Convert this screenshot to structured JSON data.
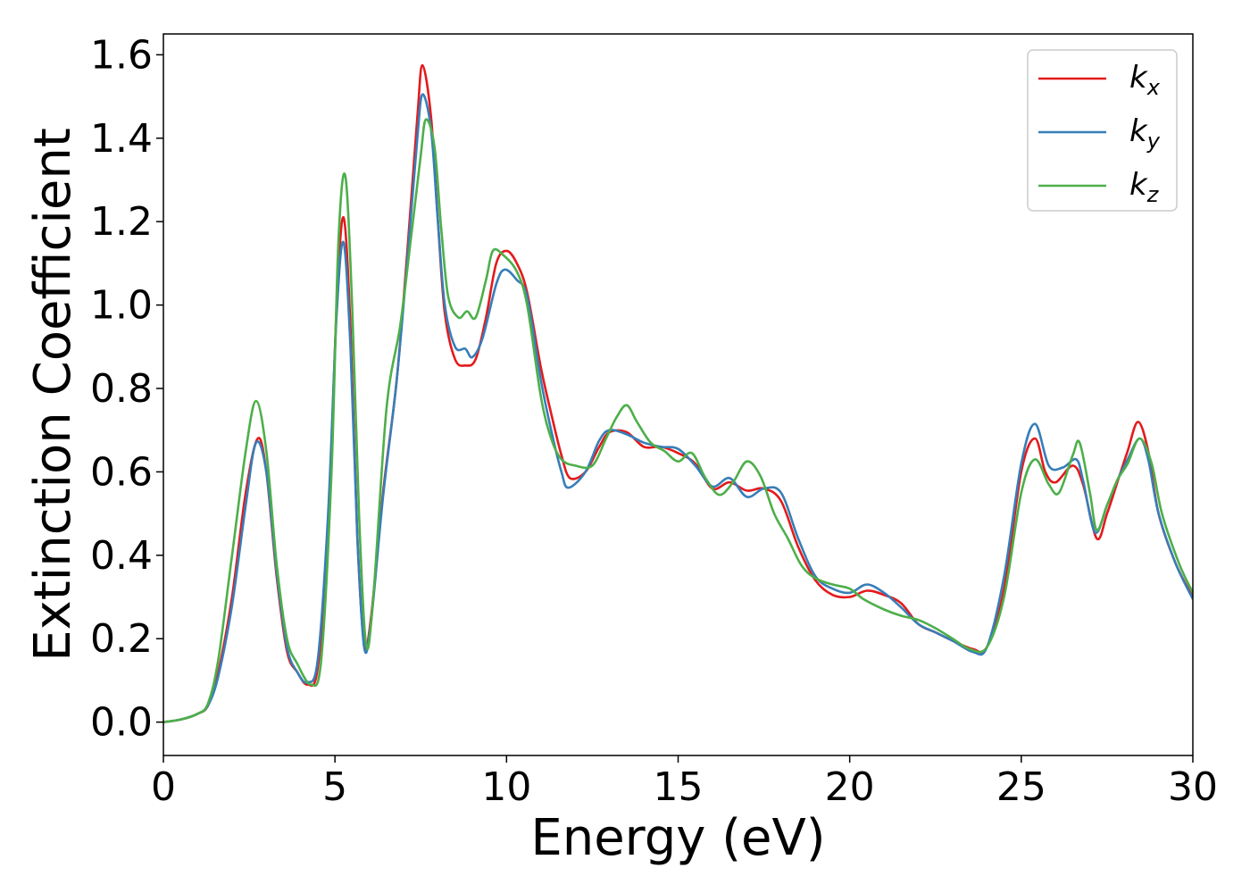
{
  "chart_data": {
    "type": "line",
    "title": "",
    "xlabel": "Energy (eV)",
    "ylabel": "Extinction Coefficient",
    "xlim": [
      0,
      30
    ],
    "ylim": [
      -0.08,
      1.65
    ],
    "xticks": [
      "0",
      "5",
      "10",
      "15",
      "20",
      "25",
      "30"
    ],
    "yticks": [
      "0.0",
      "0.2",
      "0.4",
      "0.6",
      "0.8",
      "1.0",
      "1.2",
      "1.4",
      "1.6"
    ],
    "grid": false,
    "legend_position": "top-right",
    "series": [
      {
        "name": "k",
        "subscript": "x",
        "color": "#e41a1c",
        "points": [
          [
            0,
            0.0
          ],
          [
            0.5,
            0.006
          ],
          [
            1.0,
            0.02
          ],
          [
            1.3,
            0.04
          ],
          [
            1.6,
            0.12
          ],
          [
            2.0,
            0.3
          ],
          [
            2.4,
            0.55
          ],
          [
            2.75,
            0.68
          ],
          [
            3.0,
            0.6
          ],
          [
            3.3,
            0.35
          ],
          [
            3.6,
            0.17
          ],
          [
            3.9,
            0.12
          ],
          [
            4.2,
            0.09
          ],
          [
            4.5,
            0.13
          ],
          [
            4.8,
            0.45
          ],
          [
            5.05,
            1.0
          ],
          [
            5.25,
            1.21
          ],
          [
            5.45,
            0.95
          ],
          [
            5.65,
            0.45
          ],
          [
            5.85,
            0.19
          ],
          [
            6.05,
            0.25
          ],
          [
            6.4,
            0.55
          ],
          [
            6.8,
            0.82
          ],
          [
            7.1,
            1.12
          ],
          [
            7.4,
            1.45
          ],
          [
            7.55,
            1.575
          ],
          [
            7.8,
            1.45
          ],
          [
            8.0,
            1.2
          ],
          [
            8.2,
            0.98
          ],
          [
            8.5,
            0.87
          ],
          [
            8.8,
            0.855
          ],
          [
            9.1,
            0.87
          ],
          [
            9.4,
            0.97
          ],
          [
            9.7,
            1.1
          ],
          [
            10.0,
            1.13
          ],
          [
            10.3,
            1.1
          ],
          [
            10.6,
            1.03
          ],
          [
            11.0,
            0.85
          ],
          [
            11.3,
            0.74
          ],
          [
            11.6,
            0.64
          ],
          [
            11.85,
            0.585
          ],
          [
            12.3,
            0.6
          ],
          [
            12.7,
            0.66
          ],
          [
            13.0,
            0.695
          ],
          [
            13.5,
            0.695
          ],
          [
            14.0,
            0.66
          ],
          [
            14.5,
            0.66
          ],
          [
            15.0,
            0.645
          ],
          [
            15.5,
            0.62
          ],
          [
            16.0,
            0.56
          ],
          [
            16.5,
            0.575
          ],
          [
            17.0,
            0.555
          ],
          [
            17.5,
            0.56
          ],
          [
            18.0,
            0.53
          ],
          [
            18.5,
            0.42
          ],
          [
            19.0,
            0.34
          ],
          [
            19.5,
            0.305
          ],
          [
            20.0,
            0.3
          ],
          [
            20.5,
            0.315
          ],
          [
            21.0,
            0.305
          ],
          [
            21.5,
            0.285
          ],
          [
            22.0,
            0.235
          ],
          [
            22.5,
            0.215
          ],
          [
            23.0,
            0.195
          ],
          [
            23.6,
            0.175
          ],
          [
            24.0,
            0.18
          ],
          [
            24.5,
            0.32
          ],
          [
            25.0,
            0.6
          ],
          [
            25.4,
            0.68
          ],
          [
            25.7,
            0.6
          ],
          [
            26.0,
            0.575
          ],
          [
            26.5,
            0.615
          ],
          [
            26.8,
            0.57
          ],
          [
            27.2,
            0.44
          ],
          [
            27.5,
            0.5
          ],
          [
            27.8,
            0.575
          ],
          [
            28.1,
            0.65
          ],
          [
            28.4,
            0.72
          ],
          [
            28.7,
            0.65
          ],
          [
            29.0,
            0.5
          ],
          [
            29.5,
            0.38
          ],
          [
            30.0,
            0.3
          ]
        ]
      },
      {
        "name": "k",
        "subscript": "y",
        "color": "#377eb8",
        "points": [
          [
            0,
            0.0
          ],
          [
            0.5,
            0.006
          ],
          [
            1.0,
            0.02
          ],
          [
            1.3,
            0.04
          ],
          [
            1.6,
            0.11
          ],
          [
            2.0,
            0.28
          ],
          [
            2.4,
            0.52
          ],
          [
            2.7,
            0.67
          ],
          [
            3.0,
            0.6
          ],
          [
            3.3,
            0.36
          ],
          [
            3.6,
            0.18
          ],
          [
            3.9,
            0.12
          ],
          [
            4.2,
            0.095
          ],
          [
            4.5,
            0.15
          ],
          [
            4.8,
            0.5
          ],
          [
            5.05,
            0.98
          ],
          [
            5.25,
            1.15
          ],
          [
            5.45,
            0.9
          ],
          [
            5.65,
            0.45
          ],
          [
            5.85,
            0.18
          ],
          [
            6.05,
            0.24
          ],
          [
            6.4,
            0.54
          ],
          [
            6.8,
            0.82
          ],
          [
            7.1,
            1.1
          ],
          [
            7.4,
            1.4
          ],
          [
            7.55,
            1.505
          ],
          [
            7.8,
            1.42
          ],
          [
            8.0,
            1.2
          ],
          [
            8.2,
            1.0
          ],
          [
            8.5,
            0.9
          ],
          [
            8.8,
            0.895
          ],
          [
            9.0,
            0.875
          ],
          [
            9.3,
            0.92
          ],
          [
            9.7,
            1.05
          ],
          [
            9.95,
            1.085
          ],
          [
            10.3,
            1.06
          ],
          [
            10.6,
            1.02
          ],
          [
            11.0,
            0.82
          ],
          [
            11.3,
            0.7
          ],
          [
            11.6,
            0.6
          ],
          [
            11.8,
            0.562
          ],
          [
            12.3,
            0.6
          ],
          [
            12.7,
            0.675
          ],
          [
            13.0,
            0.7
          ],
          [
            13.5,
            0.69
          ],
          [
            14.0,
            0.67
          ],
          [
            14.5,
            0.66
          ],
          [
            15.0,
            0.655
          ],
          [
            15.5,
            0.615
          ],
          [
            16.0,
            0.565
          ],
          [
            16.5,
            0.585
          ],
          [
            17.0,
            0.54
          ],
          [
            17.5,
            0.56
          ],
          [
            18.0,
            0.55
          ],
          [
            18.5,
            0.44
          ],
          [
            19.0,
            0.35
          ],
          [
            19.5,
            0.32
          ],
          [
            20.0,
            0.31
          ],
          [
            20.5,
            0.33
          ],
          [
            21.0,
            0.31
          ],
          [
            21.5,
            0.275
          ],
          [
            22.0,
            0.235
          ],
          [
            22.5,
            0.215
          ],
          [
            23.0,
            0.195
          ],
          [
            23.6,
            0.168
          ],
          [
            24.0,
            0.18
          ],
          [
            24.5,
            0.35
          ],
          [
            25.0,
            0.62
          ],
          [
            25.4,
            0.715
          ],
          [
            25.8,
            0.615
          ],
          [
            26.2,
            0.61
          ],
          [
            26.6,
            0.63
          ],
          [
            26.8,
            0.58
          ],
          [
            27.15,
            0.455
          ],
          [
            27.5,
            0.52
          ],
          [
            27.8,
            0.58
          ],
          [
            28.1,
            0.63
          ],
          [
            28.45,
            0.68
          ],
          [
            28.7,
            0.63
          ],
          [
            29.0,
            0.5
          ],
          [
            29.5,
            0.38
          ],
          [
            30.0,
            0.295
          ]
        ]
      },
      {
        "name": "k",
        "subscript": "z",
        "color": "#4daf4a",
        "points": [
          [
            0,
            0.0
          ],
          [
            0.5,
            0.006
          ],
          [
            1.0,
            0.02
          ],
          [
            1.3,
            0.045
          ],
          [
            1.6,
            0.15
          ],
          [
            2.0,
            0.4
          ],
          [
            2.4,
            0.65
          ],
          [
            2.7,
            0.77
          ],
          [
            3.0,
            0.65
          ],
          [
            3.3,
            0.38
          ],
          [
            3.6,
            0.2
          ],
          [
            3.9,
            0.14
          ],
          [
            4.3,
            0.09
          ],
          [
            4.6,
            0.15
          ],
          [
            4.9,
            0.6
          ],
          [
            5.1,
            1.15
          ],
          [
            5.3,
            1.31
          ],
          [
            5.5,
            1.0
          ],
          [
            5.7,
            0.5
          ],
          [
            5.9,
            0.19
          ],
          [
            6.1,
            0.28
          ],
          [
            6.5,
            0.75
          ],
          [
            6.9,
            0.95
          ],
          [
            7.2,
            1.15
          ],
          [
            7.5,
            1.36
          ],
          [
            7.65,
            1.445
          ],
          [
            7.9,
            1.38
          ],
          [
            8.1,
            1.18
          ],
          [
            8.3,
            1.02
          ],
          [
            8.6,
            0.97
          ],
          [
            8.85,
            0.985
          ],
          [
            9.1,
            0.97
          ],
          [
            9.4,
            1.06
          ],
          [
            9.6,
            1.13
          ],
          [
            9.9,
            1.12
          ],
          [
            10.3,
            1.08
          ],
          [
            10.6,
            1.0
          ],
          [
            11.0,
            0.78
          ],
          [
            11.3,
            0.68
          ],
          [
            11.6,
            0.63
          ],
          [
            12.0,
            0.615
          ],
          [
            12.5,
            0.615
          ],
          [
            12.9,
            0.68
          ],
          [
            13.2,
            0.73
          ],
          [
            13.5,
            0.76
          ],
          [
            13.8,
            0.72
          ],
          [
            14.2,
            0.67
          ],
          [
            14.6,
            0.65
          ],
          [
            15.0,
            0.625
          ],
          [
            15.4,
            0.645
          ],
          [
            15.8,
            0.585
          ],
          [
            16.2,
            0.545
          ],
          [
            16.6,
            0.575
          ],
          [
            17.0,
            0.625
          ],
          [
            17.4,
            0.59
          ],
          [
            17.8,
            0.5
          ],
          [
            18.2,
            0.44
          ],
          [
            18.6,
            0.375
          ],
          [
            19.0,
            0.345
          ],
          [
            19.5,
            0.33
          ],
          [
            20.0,
            0.32
          ],
          [
            20.4,
            0.295
          ],
          [
            21.0,
            0.27
          ],
          [
            21.5,
            0.255
          ],
          [
            22.0,
            0.245
          ],
          [
            22.5,
            0.225
          ],
          [
            23.0,
            0.2
          ],
          [
            23.5,
            0.175
          ],
          [
            24.0,
            0.18
          ],
          [
            24.5,
            0.3
          ],
          [
            25.0,
            0.55
          ],
          [
            25.4,
            0.63
          ],
          [
            25.8,
            0.57
          ],
          [
            26.1,
            0.55
          ],
          [
            26.5,
            0.64
          ],
          [
            26.7,
            0.67
          ],
          [
            27.0,
            0.55
          ],
          [
            27.2,
            0.46
          ],
          [
            27.5,
            0.52
          ],
          [
            27.8,
            0.58
          ],
          [
            28.1,
            0.62
          ],
          [
            28.45,
            0.68
          ],
          [
            28.8,
            0.62
          ],
          [
            29.1,
            0.5
          ],
          [
            29.6,
            0.38
          ],
          [
            30.0,
            0.31
          ]
        ]
      }
    ]
  }
}
